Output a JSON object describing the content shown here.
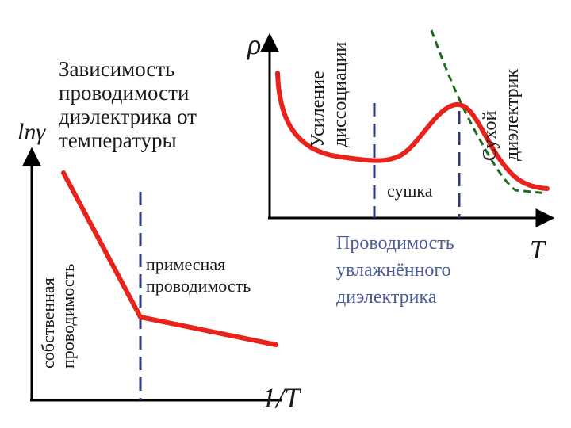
{
  "left_plot": {
    "heading": [
      "Зависимость",
      "проводимости",
      "диэлектрика от",
      "температуры"
    ],
    "y_axis_label": "lnγ",
    "x_axis_label": "1/T",
    "region_intrinsic": [
      "собственная",
      "проводимость"
    ],
    "region_impurity": [
      "примесная",
      "проводимость"
    ]
  },
  "right_plot": {
    "y_axis_label": "ρ",
    "x_axis_label": "T",
    "label_dissociation": [
      "Усиление",
      "диссоциации"
    ],
    "label_dry": [
      "Сухой",
      "диэлектрик"
    ],
    "label_drying": "сушка",
    "caption": [
      "Проводимость",
      "увлажнённого",
      "диэлектрика"
    ]
  },
  "colors": {
    "curve": "#e8231c",
    "divider": "#2e3a7a",
    "dry_curve": "#1f6b1f",
    "axis": "#000000",
    "caption": "#4a5a9a"
  }
}
